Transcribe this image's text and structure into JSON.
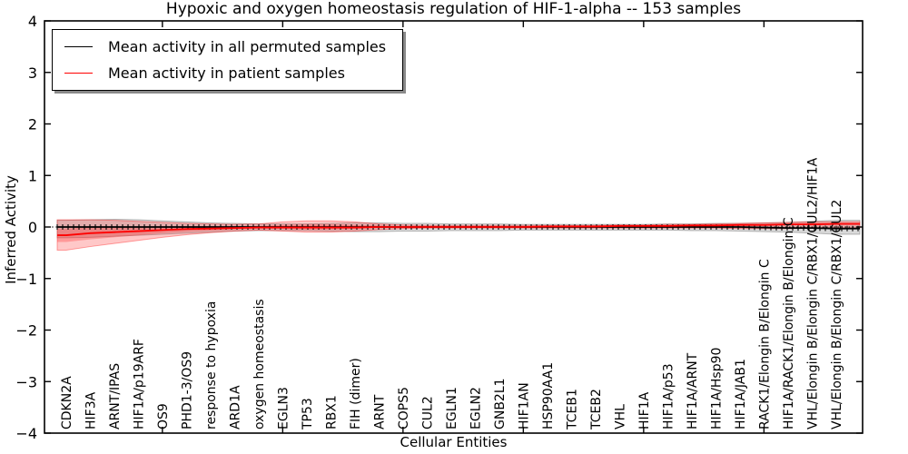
{
  "chart_data": {
    "type": "line",
    "title": "Hypoxic and oxygen homeostasis regulation of HIF-1-alpha -- 153 samples",
    "xlabel": "Cellular Entities",
    "ylabel": "Inferred Activity",
    "ylim": [
      -4,
      4
    ],
    "yticks": [
      4,
      3,
      2,
      1,
      0,
      -1,
      -2,
      -3,
      -4
    ],
    "ytick_labels": [
      "4",
      "3",
      "2",
      "1",
      "0",
      "−1",
      "−2",
      "−3",
      "−4"
    ],
    "xticks": [
      5,
      10,
      15,
      20,
      25,
      30
    ],
    "grid": false,
    "legend_position": "upper left",
    "categories": [
      "CDKN2A",
      "HIF3A",
      "ARNT/IPAS",
      "HIF1A/p19ARF",
      "OS9",
      "PHD1-3/OS9",
      "response to hypoxia",
      "ARD1A",
      "oxygen homeostasis",
      "EGLN3",
      "TP53",
      "RBX1",
      "FIH (dimer)",
      "ARNT",
      "COPS5",
      "CUL2",
      "EGLN1",
      "EGLN2",
      "GNB2L1",
      "HIF1AN",
      "HSP90AA1",
      "TCEB1",
      "TCEB2",
      "VHL",
      "HIF1A",
      "HIF1A/p53",
      "HIF1A/ARNT",
      "HIF1A/Hsp90",
      "HIF1A/JAB1",
      "RACK1/Elongin B/Elongin C",
      "HIF1A/RACK1/Elongin B/Elongin C",
      "VHL/Elongin B/Elongin C/RBX1/CUL2/HIF1A",
      "VHL/Elongin B/Elongin C/RBX1/CUL2"
    ],
    "series": [
      {
        "name": "Mean activity in all permuted samples",
        "color": "#000000",
        "values": [
          0,
          0,
          0,
          0,
          0,
          0,
          0,
          0,
          0,
          0,
          0,
          0,
          0,
          0,
          0,
          0,
          0,
          0,
          0,
          0,
          0,
          0,
          0,
          0,
          0,
          0,
          0,
          0,
          0,
          -0.01,
          -0.02,
          -0.02,
          -0.03
        ]
      },
      {
        "name": "Mean activity in patient samples",
        "color": "#ff0000",
        "values": [
          -0.16,
          -0.12,
          -0.1,
          -0.08,
          -0.06,
          -0.04,
          -0.03,
          -0.02,
          -0.01,
          -0.01,
          -0.01,
          -0.01,
          -0.01,
          0,
          0,
          0,
          0,
          0,
          0,
          0,
          0.01,
          0.01,
          0.01,
          0.02,
          0.02,
          0.02,
          0.03,
          0.03,
          0.04,
          0.04,
          0.05,
          0.05,
          0.06
        ]
      }
    ],
    "bands": [
      {
        "name": "permuted-samples-range",
        "color": "#8a8a8a",
        "opacity": 0.32,
        "stroke": "rgba(110,110,110,0.45)",
        "upper": [
          0.13,
          0.14,
          0.15,
          0.14,
          0.12,
          0.1,
          0.08,
          0.07,
          0.06,
          0.06,
          0.06,
          0.07,
          0.08,
          0.08,
          0.07,
          0.07,
          0.06,
          0.06,
          0.06,
          0.05,
          0.05,
          0.05,
          0.05,
          0.05,
          0.05,
          0.06,
          0.06,
          0.07,
          0.07,
          0.08,
          0.09,
          0.11,
          0.13
        ],
        "lower": [
          -0.21,
          -0.2,
          -0.18,
          -0.16,
          -0.14,
          -0.12,
          -0.1,
          -0.08,
          -0.07,
          -0.07,
          -0.07,
          -0.08,
          -0.09,
          -0.09,
          -0.08,
          -0.08,
          -0.07,
          -0.07,
          -0.07,
          -0.06,
          -0.06,
          -0.06,
          -0.06,
          -0.06,
          -0.06,
          -0.06,
          -0.07,
          -0.07,
          -0.08,
          -0.09,
          -0.1,
          -0.12,
          -0.14
        ]
      },
      {
        "name": "patient-samples-range-outer",
        "color": "#ff2a2a",
        "opacity": 0.26,
        "stroke": "rgba(255,0,0,0.35)",
        "upper": [
          0.14,
          0.14,
          0.13,
          0.11,
          0.09,
          0.07,
          0.06,
          0.05,
          0.06,
          0.1,
          0.12,
          0.12,
          0.1,
          0.06,
          0.04,
          0.03,
          0.03,
          0.03,
          0.03,
          0.03,
          0.03,
          0.03,
          0.03,
          0.04,
          0.04,
          0.05,
          0.05,
          0.06,
          0.07,
          0.08,
          0.09,
          0.1,
          0.1
        ],
        "lower": [
          -0.45,
          -0.38,
          -0.32,
          -0.26,
          -0.2,
          -0.15,
          -0.11,
          -0.08,
          -0.06,
          -0.08,
          -0.1,
          -0.1,
          -0.08,
          -0.05,
          -0.03,
          -0.02,
          -0.02,
          -0.02,
          -0.02,
          -0.02,
          -0.02,
          -0.02,
          -0.02,
          -0.02,
          -0.02,
          -0.02,
          -0.02,
          -0.02,
          -0.03,
          -0.03,
          -0.03,
          -0.02,
          -0.02
        ]
      },
      {
        "name": "patient-samples-range-inner",
        "color": "#ff2a2a",
        "opacity": 0.3,
        "stroke": "none",
        "upper": [
          -0.03,
          0,
          0,
          0,
          0.01,
          0.01,
          0.01,
          0.01,
          0.02,
          0.04,
          0.05,
          0.05,
          0.04,
          0.03,
          0.02,
          0.01,
          0.01,
          0.01,
          0.01,
          0.01,
          0.02,
          0.02,
          0.02,
          0.03,
          0.03,
          0.03,
          0.04,
          0.04,
          0.06,
          0.06,
          0.07,
          0.08,
          0.08
        ],
        "lower": [
          -0.29,
          -0.24,
          -0.2,
          -0.16,
          -0.12,
          -0.09,
          -0.07,
          -0.05,
          -0.03,
          -0.04,
          -0.05,
          -0.05,
          -0.04,
          -0.02,
          -0.01,
          -0.01,
          -0.01,
          -0.01,
          -0.01,
          -0.01,
          0,
          0,
          0,
          0.01,
          0.01,
          0.01,
          0.01,
          0.01,
          0.02,
          0.02,
          0.03,
          0.04,
          0.05
        ]
      }
    ],
    "zero_line": true
  }
}
